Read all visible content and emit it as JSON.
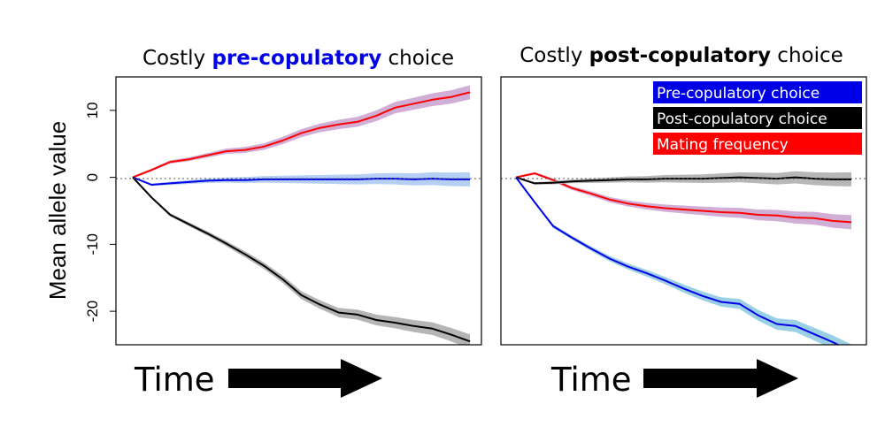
{
  "chart_data": [
    {
      "type": "line",
      "title_parts": [
        {
          "text": "Costly ",
          "style": "normal"
        },
        {
          "text": "pre-copulatory",
          "style": "bold",
          "color": "#0000e6"
        },
        {
          "text": " choice",
          "style": "normal"
        }
      ],
      "ylabel": "Mean allele value",
      "ylim": [
        -25,
        15
      ],
      "yticks": [
        {
          "value": 10,
          "label": "10"
        },
        {
          "value": 0,
          "label": "0"
        },
        {
          "value": -10,
          "label": "-10"
        },
        {
          "value": -20,
          "label": "-20"
        }
      ],
      "reference_line": 0,
      "series": [
        {
          "color": "#ff0000",
          "band_color": "#c8a0cf",
          "values": [
            0,
            1.1,
            2.3,
            2.7,
            3.3,
            3.9,
            4.1,
            4.6,
            5.5,
            6.6,
            7.4,
            7.9,
            8.3,
            9.2,
            10.4,
            11.0,
            11.6,
            12.0,
            12.7
          ]
        },
        {
          "color": "#0000e6",
          "band_color": "#a8c8f0",
          "values": [
            0,
            -1.1,
            -0.9,
            -0.7,
            -0.5,
            -0.4,
            -0.4,
            -0.3,
            -0.3,
            -0.3,
            -0.3,
            -0.3,
            -0.3,
            -0.2,
            -0.2,
            -0.3,
            -0.2,
            -0.3,
            -0.3
          ]
        },
        {
          "color": "#000000",
          "band_color": "#a8a8a8",
          "values": [
            0,
            -3.0,
            -5.6,
            -7.0,
            -8.4,
            -9.9,
            -11.5,
            -13.2,
            -15.2,
            -17.6,
            -19.0,
            -20.2,
            -20.5,
            -21.3,
            -21.7,
            -22.2,
            -22.6,
            -23.5,
            -24.5
          ]
        }
      ]
    },
    {
      "type": "line",
      "title_parts": [
        {
          "text": "Costly ",
          "style": "normal"
        },
        {
          "text": "post-copulatory",
          "style": "bold",
          "color": "#000000"
        },
        {
          "text": " choice",
          "style": "normal"
        }
      ],
      "ylim": [
        -25,
        15
      ],
      "reference_line": 0,
      "legend": {
        "position": "top-right",
        "entries": [
          {
            "label": "Pre-copulatory choice",
            "color": "#0000e6"
          },
          {
            "label": "Post-copulatory choice",
            "color": "#000000"
          },
          {
            "label": "Mating frequency",
            "color": "#ff0000"
          }
        ]
      },
      "series": [
        {
          "color": "#ff0000",
          "band_color": "#c8a0cf",
          "values": [
            0,
            0.6,
            -0.4,
            -1.6,
            -2.4,
            -3.3,
            -3.9,
            -4.3,
            -4.6,
            -4.8,
            -5.0,
            -5.2,
            -5.3,
            -5.6,
            -5.7,
            -6.0,
            -6.1,
            -6.5,
            -6.7
          ]
        },
        {
          "color": "#000000",
          "band_color": "#aaaaaa",
          "values": [
            0,
            -0.9,
            -0.8,
            -0.6,
            -0.5,
            -0.4,
            -0.3,
            -0.3,
            -0.2,
            -0.2,
            -0.2,
            -0.1,
            0,
            -0.1,
            -0.2,
            0,
            -0.2,
            -0.3,
            -0.3
          ]
        },
        {
          "color": "#0000e6",
          "band_color": "#88c8e0",
          "values": [
            0,
            -3.7,
            -7.3,
            -9.0,
            -10.6,
            -12.1,
            -13.3,
            -14.3,
            -15.4,
            -16.6,
            -17.7,
            -18.6,
            -18.9,
            -20.6,
            -21.9,
            -22.2,
            -23.4,
            -24.6,
            -26.0
          ]
        }
      ]
    }
  ],
  "time_label": "Time"
}
